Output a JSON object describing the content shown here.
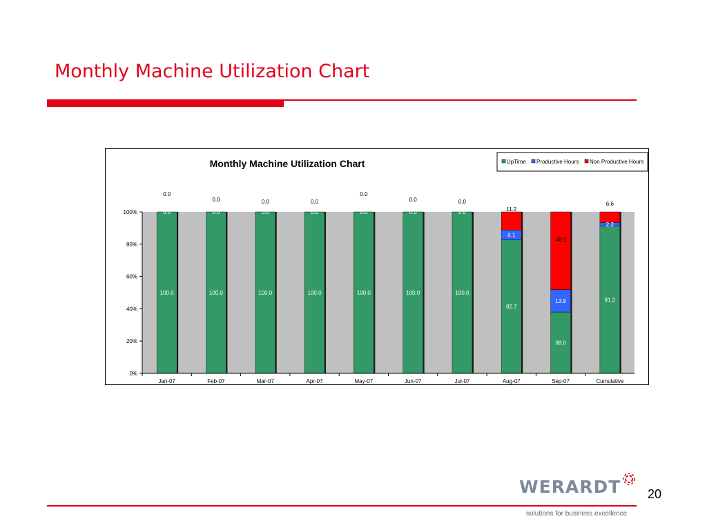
{
  "slide": {
    "title": "Monthly Machine Utilization Chart",
    "page_number": "20",
    "logo_text": "WERARDT",
    "tagline": "solutions for business excellence"
  },
  "colors": {
    "accent_red": "#e2001a",
    "uptime": "#339966",
    "productive": "#3366ff",
    "non_productive": "#ff0000",
    "plot_background": "#c0c0c0",
    "logo_gray": "#7d8a99"
  },
  "chart_data": {
    "type": "bar",
    "stacked": "percent",
    "title": "Monthly Machine Utilization Chart",
    "xlabel": "",
    "ylabel": "",
    "ylim": [
      0,
      100
    ],
    "y_ticks": [
      "0%",
      "20%",
      "40%",
      "60%",
      "80%",
      "100%"
    ],
    "grid": false,
    "legend_position": "top-right",
    "categories": [
      "Jan-07",
      "Feb-07",
      "Mar-07",
      "Apr-07",
      "May-07",
      "Jun-07",
      "Jul-07",
      "Aug-07",
      "Sep-07",
      "Cumulative"
    ],
    "series": [
      {
        "name": "UpTime",
        "values": [
          100.0,
          100.0,
          100.0,
          100.0,
          100.0,
          100.0,
          100.0,
          82.7,
          38.0,
          91.2
        ],
        "labels": [
          "100.0",
          "100.0",
          "100.0",
          "100.0",
          "100.0",
          "100.0",
          "100.0",
          "82.7",
          "38.0",
          "91.2"
        ]
      },
      {
        "name": "Productive Hours",
        "values": [
          0.0,
          0.0,
          0.0,
          0.0,
          0.0,
          0.0,
          0.0,
          6.1,
          13.9,
          2.2
        ],
        "labels": [
          "0.0",
          "0.0",
          "0.0",
          "0.0",
          "0.0",
          "0.0",
          "0.0",
          "6.1",
          "13.9",
          "2.2"
        ]
      },
      {
        "name": "Non Productive Hours",
        "values": [
          0.0,
          0.0,
          0.0,
          0.0,
          0.0,
          0.0,
          0.0,
          11.2,
          48.1,
          6.6
        ],
        "labels": [
          "0.0",
          "0.0",
          "0.0",
          "0.0",
          "0.0",
          "0.0",
          "0.0",
          "11.2",
          "48.1",
          "6.6"
        ]
      }
    ]
  }
}
